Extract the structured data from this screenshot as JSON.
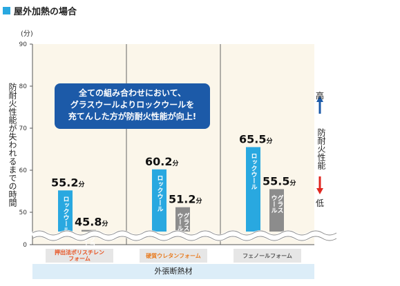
{
  "header": {
    "title": "屋外加熱の場合"
  },
  "chart_data": {
    "type": "bar",
    "y_unit": "(分)",
    "ylabel": "防耐火性能が失われるまでの時間",
    "ylim": [
      0,
      90
    ],
    "yticks": [
      0,
      50,
      60,
      70,
      80,
      90
    ],
    "axis_break": "between 0 and 50",
    "xlabel": "外張断熱材",
    "categories": [
      "押出法ポリスチレン\nフォーム",
      "硬質ウレタンフォーム",
      "フェノールフォーム"
    ],
    "series": [
      {
        "name": "ロックウール",
        "values": [
          55.2,
          60.2,
          65.5
        ],
        "color": "#29a8e0"
      },
      {
        "name": "グラス\nウール",
        "values": [
          45.8,
          51.2,
          55.5
        ],
        "color": "#8c8c8c"
      }
    ],
    "value_labels": [
      [
        "55.2分",
        "45.8分"
      ],
      [
        "60.2分",
        "51.2分"
      ],
      [
        "65.5分",
        "55.5分"
      ]
    ],
    "annotation": [
      "全ての組み合わせにおいて、",
      "グラスウールよりロックウールを",
      "充てんした方が防耐火性能が向上!"
    ],
    "scale_indicator": {
      "high": "高",
      "low": "低",
      "label": "防耐火性能"
    },
    "category_label_colors": [
      "#e8511f",
      "#e87b1f",
      "#555555"
    ],
    "grid": false
  }
}
